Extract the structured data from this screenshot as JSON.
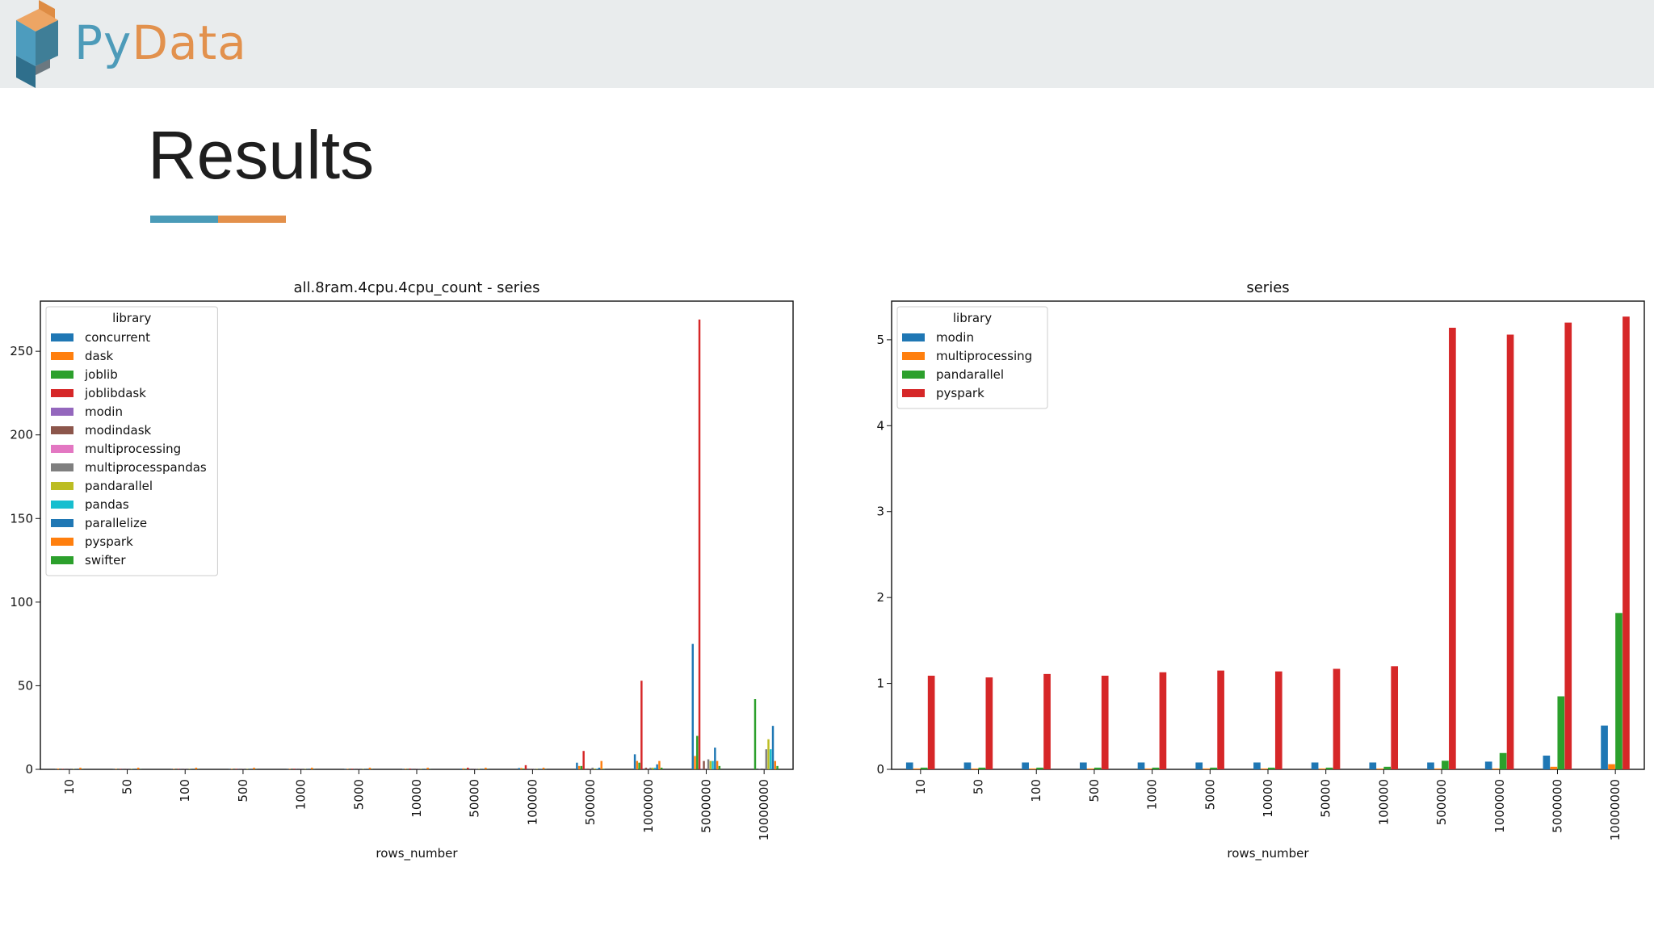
{
  "header": {
    "logo": {
      "py": "Py",
      "data": "Data"
    }
  },
  "slide": {
    "title": "Results"
  },
  "colors": {
    "header_bg": "#e9eced",
    "accent_blue": "#4a9bb8",
    "accent_orange": "#e3904b"
  },
  "chart_data": [
    {
      "type": "bar",
      "title": "all.8ram.4cpu.4cpu_count - series",
      "xlabel": "rows_number",
      "ylabel": "",
      "ylim": [
        0,
        280
      ],
      "yticks": [
        0,
        50,
        100,
        150,
        200,
        250
      ],
      "grid": false,
      "legend": {
        "title": "library",
        "placement": "top-left"
      },
      "categories": [
        "10",
        "50",
        "100",
        "500",
        "1000",
        "5000",
        "10000",
        "50000",
        "100000",
        "500000",
        "1000000",
        "5000000",
        "10000000"
      ],
      "series": [
        {
          "name": "concurrent",
          "color": "#1f77b4",
          "values": [
            0.1,
            0.1,
            0.1,
            0.1,
            0.1,
            0.2,
            0.2,
            0.5,
            0.8,
            4,
            9,
            75,
            0
          ]
        },
        {
          "name": "dask",
          "color": "#ff7f0e",
          "values": [
            0.5,
            0.3,
            0.3,
            0.3,
            0.3,
            0.3,
            0.4,
            0.6,
            0.8,
            2,
            5,
            8,
            0
          ]
        },
        {
          "name": "joblib",
          "color": "#2ca02c",
          "values": [
            0.1,
            0.1,
            0.1,
            0.1,
            0.1,
            0.1,
            0.2,
            0.3,
            0.5,
            2,
            4,
            20,
            42
          ]
        },
        {
          "name": "joblibdask",
          "color": "#d62728",
          "values": [
            0.3,
            0.3,
            0.3,
            0.3,
            0.4,
            0.4,
            0.5,
            1,
            2.5,
            11,
            53,
            269,
            0
          ]
        },
        {
          "name": "modin",
          "color": "#9467bd",
          "values": [
            0.1,
            0.1,
            0.1,
            0.1,
            0.1,
            0.1,
            0.1,
            0.1,
            0.1,
            0.1,
            0.1,
            0.2,
            0.2
          ]
        },
        {
          "name": "modindask",
          "color": "#8c564b",
          "values": [
            0.1,
            0.1,
            0.1,
            0.1,
            0.1,
            0.1,
            0.1,
            0.1,
            0.2,
            0.5,
            1,
            5,
            0
          ]
        },
        {
          "name": "multiprocessing",
          "color": "#e377c2",
          "values": [
            0.1,
            0.1,
            0.1,
            0.1,
            0.1,
            0.1,
            0.1,
            0.1,
            0.1,
            0.1,
            0.1,
            0.1,
            0.1
          ]
        },
        {
          "name": "multiprocesspandas",
          "color": "#7f7f7f",
          "values": [
            0.1,
            0.1,
            0.1,
            0.1,
            0.1,
            0.1,
            0.2,
            0.2,
            0.3,
            1,
            1,
            6,
            12
          ]
        },
        {
          "name": "pandarallel",
          "color": "#bcbd22",
          "values": [
            0.2,
            0.2,
            0.2,
            0.2,
            0.2,
            0.2,
            0.2,
            0.2,
            0.2,
            0.5,
            1,
            5,
            18
          ]
        },
        {
          "name": "pandas",
          "color": "#17becf",
          "values": [
            0.1,
            0.1,
            0.1,
            0.1,
            0.1,
            0.1,
            0.1,
            0.1,
            0.1,
            0.3,
            1,
            5,
            12
          ]
        },
        {
          "name": "parallelize",
          "color": "#1f77b4",
          "values": [
            0.1,
            0.1,
            0.1,
            0.1,
            0.1,
            0.1,
            0.2,
            0.2,
            0.3,
            1,
            3,
            13,
            26
          ]
        },
        {
          "name": "pyspark",
          "color": "#ff7f0e",
          "values": [
            1,
            1,
            1,
            1,
            1,
            1,
            1,
            1,
            1,
            5,
            5,
            5,
            5
          ]
        },
        {
          "name": "swifter",
          "color": "#2ca02c",
          "values": [
            0.1,
            0.1,
            0.1,
            0.1,
            0.1,
            0.1,
            0.1,
            0.1,
            0.1,
            0.3,
            1,
            2,
            2
          ]
        }
      ]
    },
    {
      "type": "bar",
      "title": "series",
      "xlabel": "rows_number",
      "ylabel": "",
      "ylim": [
        0,
        5.45
      ],
      "yticks": [
        0,
        1,
        2,
        3,
        4,
        5
      ],
      "grid": false,
      "legend": {
        "title": "library",
        "placement": "top-left"
      },
      "categories": [
        "10",
        "50",
        "100",
        "500",
        "1000",
        "5000",
        "10000",
        "50000",
        "100000",
        "500000",
        "1000000",
        "5000000",
        "10000000"
      ],
      "series": [
        {
          "name": "modin",
          "color": "#1f77b4",
          "values": [
            0.08,
            0.08,
            0.08,
            0.08,
            0.08,
            0.08,
            0.08,
            0.08,
            0.08,
            0.08,
            0.09,
            0.16,
            0.51
          ]
        },
        {
          "name": "multiprocessing",
          "color": "#ff7f0e",
          "values": [
            0.01,
            0.01,
            0.01,
            0.01,
            0.01,
            0.01,
            0.01,
            0.01,
            0.01,
            0.01,
            0.01,
            0.03,
            0.06
          ]
        },
        {
          "name": "pandarallel",
          "color": "#2ca02c",
          "values": [
            0.02,
            0.02,
            0.02,
            0.02,
            0.02,
            0.02,
            0.02,
            0.02,
            0.03,
            0.1,
            0.19,
            0.85,
            1.82
          ]
        },
        {
          "name": "pyspark",
          "color": "#d62728",
          "values": [
            1.09,
            1.07,
            1.11,
            1.09,
            1.13,
            1.15,
            1.14,
            1.17,
            1.2,
            5.14,
            5.06,
            5.2,
            5.27
          ]
        }
      ]
    }
  ]
}
